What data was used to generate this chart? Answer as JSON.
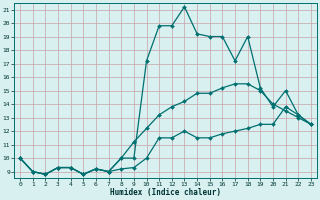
{
  "xlabel": "Humidex (Indice chaleur)",
  "bg_color": "#d8f0f0",
  "grid_color": "#c8a0a8",
  "line_color": "#007070",
  "xlim": [
    -0.5,
    23.5
  ],
  "ylim": [
    8.5,
    21.5
  ],
  "yticks": [
    9,
    10,
    11,
    12,
    13,
    14,
    15,
    16,
    17,
    18,
    19,
    20,
    21
  ],
  "xticks": [
    0,
    1,
    2,
    3,
    4,
    5,
    6,
    7,
    8,
    9,
    10,
    11,
    12,
    13,
    14,
    15,
    16,
    17,
    18,
    19,
    20,
    21,
    22,
    23
  ],
  "lines": [
    {
      "x": [
        0,
        1,
        2,
        3,
        4,
        5,
        6,
        7,
        8,
        9,
        10,
        11,
        12,
        13,
        14,
        15,
        16,
        17,
        18,
        19,
        20,
        21,
        22,
        23
      ],
      "y": [
        10.0,
        9.0,
        8.8,
        9.3,
        9.3,
        8.8,
        9.2,
        9.0,
        9.2,
        9.3,
        10.0,
        11.5,
        11.5,
        12.0,
        11.5,
        11.5,
        11.8,
        12.0,
        12.2,
        12.5,
        12.5,
        13.8,
        13.2,
        12.5
      ]
    },
    {
      "x": [
        0,
        1,
        2,
        3,
        4,
        5,
        6,
        7,
        8,
        9,
        10,
        11,
        12,
        13,
        14,
        15,
        16,
        17,
        18,
        19,
        20,
        21,
        22,
        23
      ],
      "y": [
        10.0,
        9.0,
        8.8,
        9.3,
        9.3,
        8.8,
        9.2,
        9.0,
        10.0,
        11.2,
        12.2,
        13.2,
        13.8,
        14.2,
        14.8,
        14.8,
        15.2,
        15.5,
        15.5,
        15.0,
        14.0,
        13.5,
        13.0,
        12.5
      ]
    },
    {
      "x": [
        0,
        1,
        2,
        3,
        4,
        5,
        6,
        7,
        8,
        9,
        10,
        11,
        12,
        13,
        14,
        15,
        16,
        17,
        18,
        19,
        20,
        21,
        22,
        23
      ],
      "y": [
        10.0,
        9.0,
        8.8,
        9.3,
        9.3,
        8.8,
        9.2,
        9.0,
        10.0,
        10.0,
        17.2,
        19.8,
        19.8,
        21.2,
        19.2,
        19.0,
        19.0,
        17.2,
        19.0,
        15.2,
        13.8,
        15.0,
        13.2,
        12.5
      ]
    }
  ]
}
